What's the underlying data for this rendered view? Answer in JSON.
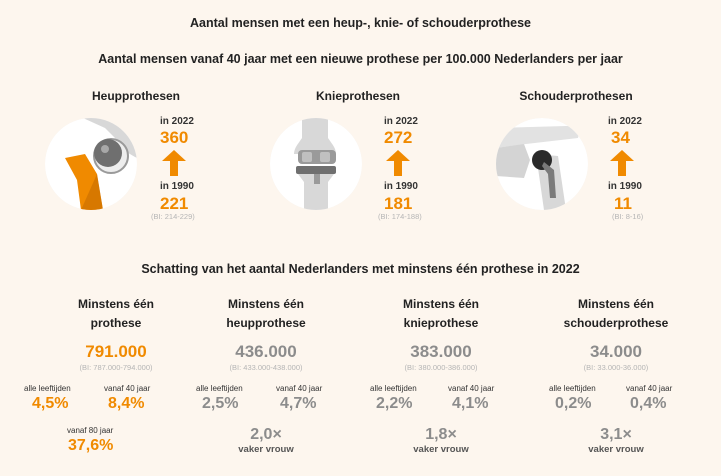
{
  "header": {
    "title": "Aantal mensen met een heup-, knie- of schouderprothese",
    "subtitle": "Aantal mensen vanaf 40 jaar met een nieuwe prothese per 100.000 Nederlanders per jaar"
  },
  "colors": {
    "orange": "#f08a00",
    "grey": "#8c8c8c",
    "background": "#fdf6ee"
  },
  "prostheses": [
    {
      "title": "Heupprothesen",
      "icon": "hip-joint-icon",
      "label_2022": "in 2022",
      "value_2022": "360",
      "label_1990": "in 1990",
      "value_1990": "221",
      "ci_1990": "(BI: 214-229)"
    },
    {
      "title": "Knieprothesen",
      "icon": "knee-joint-icon",
      "label_2022": "in 2022",
      "value_2022": "272",
      "label_1990": "in 1990",
      "value_1990": "181",
      "ci_1990": "(BI: 174-188)"
    },
    {
      "title": "Schouderprothesen",
      "icon": "shoulder-joint-icon",
      "label_2022": "in 2022",
      "value_2022": "34",
      "label_1990": "in 1990",
      "value_1990": "11",
      "ci_1990": "(BI: 8-16)"
    }
  ],
  "estimate": {
    "title": "Schatting van het aantal Nederlanders met minstens één prothese in 2022",
    "cards": [
      {
        "title_line1": "Minstens één",
        "title_line2": "prothese",
        "total": "791.000",
        "ci": "(BI: 787.000-794.000)",
        "all_ages_label": "alle leeftijden",
        "all_ages_pct": "4,5%",
        "age40_label": "vanaf 40 jaar",
        "age40_pct": "8,4%",
        "age80_label": "vanaf 80 jaar",
        "age80_pct": "37,6%"
      },
      {
        "title_line1": "Minstens één",
        "title_line2": "heupprothese",
        "total": "436.000",
        "ci": "(BI: 433.000-438.000)",
        "all_ages_label": "alle leeftijden",
        "all_ages_pct": "2,5%",
        "age40_label": "vanaf 40 jaar",
        "age40_pct": "4,7%",
        "times": "2,0×",
        "times_label": "vaker vrouw"
      },
      {
        "title_line1": "Minstens één",
        "title_line2": "knieprothese",
        "total": "383.000",
        "ci": "(BI: 380.000-386.000)",
        "all_ages_label": "alle leeftijden",
        "all_ages_pct": "2,2%",
        "age40_label": "vanaf 40 jaar",
        "age40_pct": "4,1%",
        "times": "1,8×",
        "times_label": "vaker vrouw"
      },
      {
        "title_line1": "Minstens één",
        "title_line2": "schouderprothese",
        "total": "34.000",
        "ci": "(BI: 33.000-36.000)",
        "all_ages_label": "alle leeftijden",
        "all_ages_pct": "0,2%",
        "age40_label": "vanaf 40 jaar",
        "age40_pct": "0,4%",
        "times": "3,1×",
        "times_label": "vaker vrouw"
      }
    ]
  }
}
